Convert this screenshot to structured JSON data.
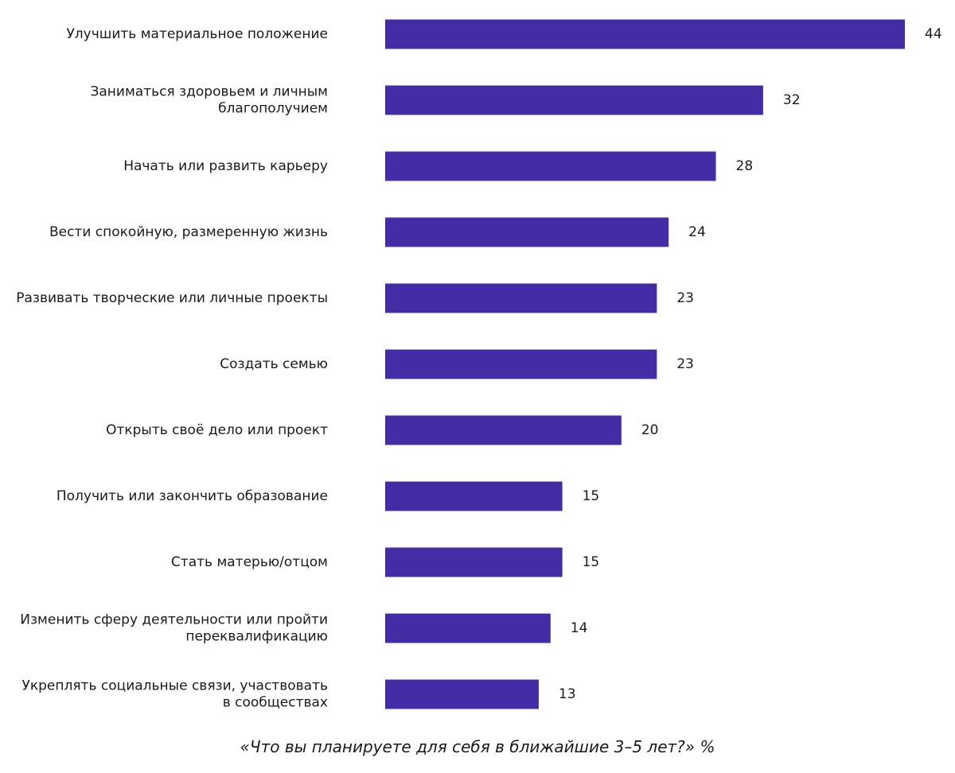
{
  "chart_data": {
    "type": "bar",
    "orientation": "horizontal",
    "title": "«Что вы планируете для себя в ближайшие 3–5 лет?» %",
    "xlabel": "",
    "ylabel": "",
    "xlim": [
      0,
      44
    ],
    "grid": false,
    "legend": "none",
    "bar_color": "#432ca6",
    "categories": [
      "Улучшить материальное положение",
      "Заниматься здоровьем и личным благополучием",
      "Начать или развить карьеру",
      "Вести спокойную, размеренную жизнь",
      "Развивать творческие или личные проекты",
      "Создать семью",
      "Открыть своё дело или проект",
      "Получить или закончить образование",
      "Стать матерью/отцом",
      "Изменить сферу деятельности или пройти переквалификацию",
      "Укреплять социальные связи, участвовать в сообществах"
    ],
    "label_lines": [
      [
        "Улучшить материальное положение"
      ],
      [
        "Заниматься здоровьем и личным",
        "благополучием"
      ],
      [
        "Начать или развить карьеру"
      ],
      [
        "Вести спокойную, размеренную жизнь"
      ],
      [
        "Развивать творческие или личные проекты"
      ],
      [
        "Создать семью"
      ],
      [
        "Открыть своё дело или проект"
      ],
      [
        "Получить или закончить образование"
      ],
      [
        "Стать матерью/отцом"
      ],
      [
        "Изменить сферу деятельности или пройти",
        "переквалификацию"
      ],
      [
        "Укреплять социальные связи, участвовать",
        "в сообществах"
      ]
    ],
    "values": [
      44,
      32,
      28,
      24,
      23,
      23,
      20,
      15,
      15,
      14,
      13
    ]
  }
}
